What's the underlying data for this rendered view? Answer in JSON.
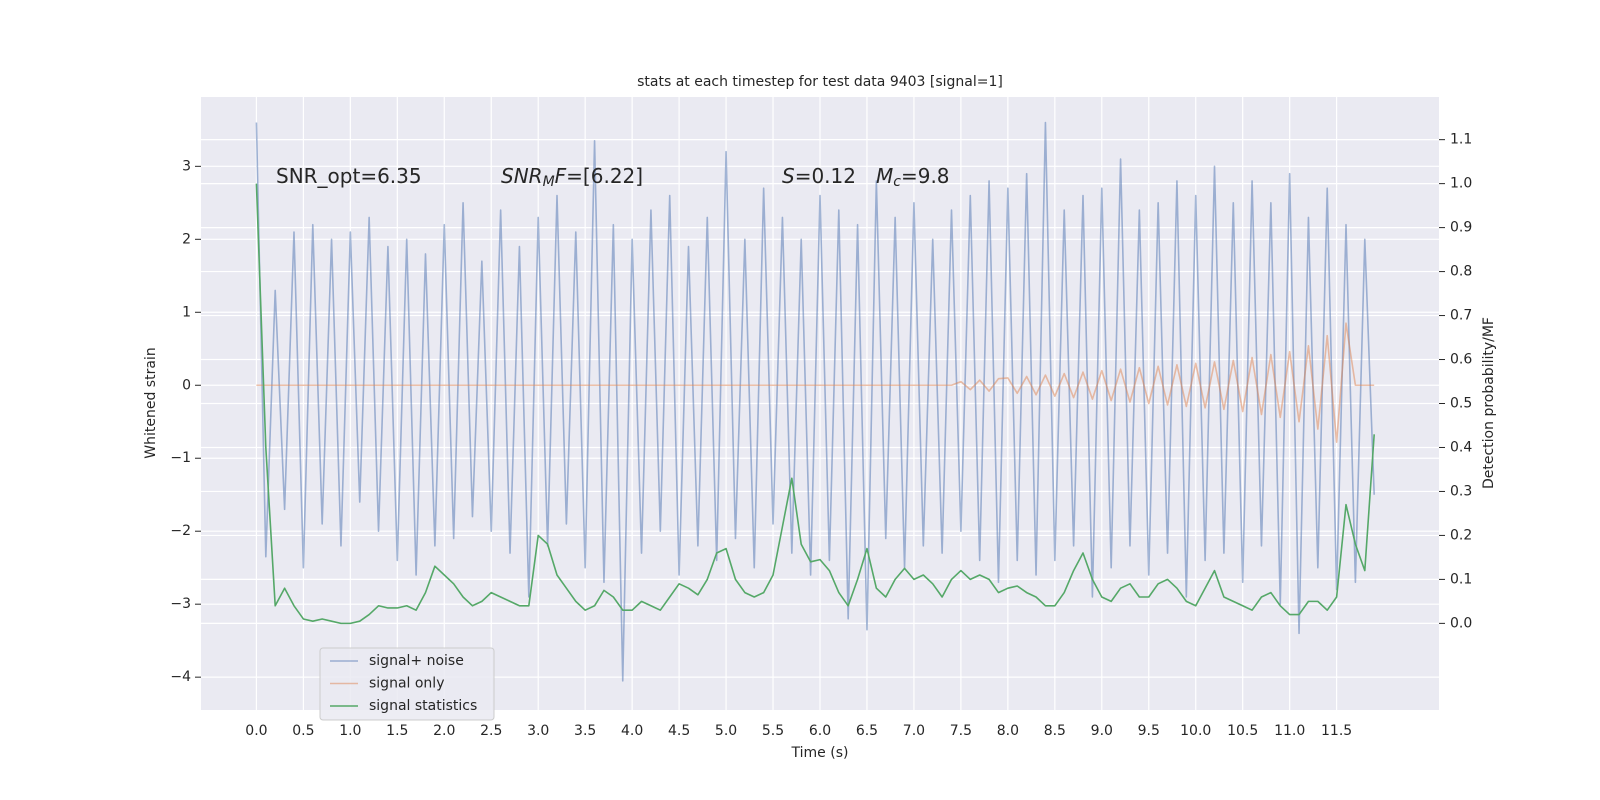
{
  "chart_data": {
    "type": "line",
    "title": "stats at each timestep for test data 9403 [signal=1]",
    "xlabel": "Time (s)",
    "ylabel": "Whitened strain",
    "y2label": "Detection probability/MF",
    "annotations": [
      [
        {
          "text": "SNR_opt=6.35"
        }
      ],
      [
        {
          "text": "SNR",
          "style": "italic"
        },
        {
          "text": "M",
          "style": "italic-sub"
        },
        {
          "text": "F",
          "style": "italic"
        },
        {
          "text": "=[6.22]"
        }
      ],
      [
        {
          "text": "S",
          "style": "italic"
        },
        {
          "text": "=0.12"
        }
      ],
      [
        {
          "text": "M",
          "style": "italic"
        },
        {
          "text": "c",
          "style": "italic-sub"
        },
        {
          "text": "=9.8"
        }
      ]
    ],
    "x": [
      0,
      0.1,
      0.2,
      0.3,
      0.4,
      0.5,
      0.6,
      0.7,
      0.8,
      0.9,
      1.0,
      1.1,
      1.2,
      1.3,
      1.4,
      1.5,
      1.6,
      1.7,
      1.8,
      1.9,
      2.0,
      2.1,
      2.2,
      2.3,
      2.4,
      2.5,
      2.6,
      2.7,
      2.8,
      2.9,
      3.0,
      3.1,
      3.2,
      3.3,
      3.4,
      3.5,
      3.6,
      3.7,
      3.8,
      3.9,
      4.0,
      4.1,
      4.2,
      4.3,
      4.4,
      4.5,
      4.6,
      4.7,
      4.8,
      4.9,
      5.0,
      5.1,
      5.2,
      5.3,
      5.4,
      5.5,
      5.6,
      5.7,
      5.8,
      5.9,
      6.0,
      6.1,
      6.2,
      6.3,
      6.4,
      6.5,
      6.6,
      6.7,
      6.8,
      6.9,
      7.0,
      7.1,
      7.2,
      7.3,
      7.4,
      7.5,
      7.6,
      7.7,
      7.8,
      7.9,
      8.0,
      8.1,
      8.2,
      8.3,
      8.4,
      8.5,
      8.6,
      8.7,
      8.8,
      8.9,
      9.0,
      9.1,
      9.2,
      9.3,
      9.4,
      9.5,
      9.6,
      9.7,
      9.8,
      9.9,
      10.0,
      10.1,
      10.2,
      10.3,
      10.4,
      10.5,
      10.6,
      10.7,
      10.8,
      10.9,
      11.0,
      11.1,
      11.2,
      11.3,
      11.4,
      11.5,
      11.6,
      11.7,
      11.8,
      11.9
    ],
    "series": [
      {
        "name": "signal+ noise",
        "color": "#4c72b0",
        "opacity": 0.5,
        "values": [
          3.6,
          -2.35,
          1.3,
          -1.7,
          2.1,
          -2.5,
          2.2,
          -1.9,
          2.0,
          -2.2,
          2.1,
          -1.6,
          2.3,
          -2.0,
          1.9,
          -2.4,
          2.0,
          -2.6,
          1.8,
          -2.2,
          2.2,
          -2.1,
          2.5,
          -1.8,
          1.7,
          -2.0,
          2.4,
          -2.3,
          1.9,
          -2.9,
          2.3,
          -2.2,
          2.6,
          -1.9,
          2.1,
          -2.5,
          3.35,
          -2.7,
          2.2,
          -4.05,
          2.0,
          -2.3,
          2.4,
          -2.0,
          2.6,
          -2.6,
          1.9,
          -2.2,
          2.3,
          -2.4,
          3.2,
          -2.1,
          2.0,
          -2.5,
          2.7,
          -1.9,
          2.3,
          -2.3,
          2.0,
          -2.6,
          2.6,
          -2.4,
          2.4,
          -3.2,
          2.2,
          -3.35,
          2.8,
          -2.1,
          2.3,
          -2.5,
          2.5,
          -2.2,
          2.0,
          -2.3,
          2.4,
          -2.0,
          2.6,
          -2.4,
          2.8,
          -2.7,
          2.7,
          -2.4,
          2.9,
          -2.6,
          3.6,
          -2.4,
          2.4,
          -2.2,
          2.6,
          -2.9,
          2.7,
          -2.5,
          3.1,
          -2.2,
          2.4,
          -2.6,
          2.5,
          -2.3,
          2.8,
          -2.9,
          2.6,
          -2.4,
          3.0,
          -2.3,
          2.5,
          -2.7,
          2.8,
          -2.2,
          2.5,
          -3.0,
          2.9,
          -3.4,
          2.3,
          -2.5,
          2.7,
          -2.8,
          2.2,
          -2.7,
          2.0,
          -1.5
        ]
      },
      {
        "name": "signal only",
        "color": "#dd8452",
        "opacity": 0.5,
        "values": [
          0,
          0,
          0,
          0,
          0,
          0,
          0,
          0,
          0,
          0,
          0,
          0,
          0,
          0,
          0,
          0,
          0,
          0,
          0,
          0,
          0,
          0,
          0,
          0,
          0,
          0,
          0,
          0,
          0,
          0,
          0,
          0,
          0,
          0,
          0,
          0,
          0,
          0,
          0,
          0,
          0,
          0,
          0,
          0,
          0,
          0,
          0,
          0,
          0,
          0,
          0,
          0,
          0,
          0,
          0,
          0,
          0,
          0,
          0,
          0,
          0,
          0,
          0,
          0,
          0,
          0,
          0,
          0,
          0,
          0,
          0,
          0,
          0,
          0,
          0,
          0.05,
          -0.06,
          0.07,
          -0.08,
          0.09,
          0.1,
          -0.11,
          0.12,
          -0.13,
          0.14,
          -0.15,
          0.16,
          -0.17,
          0.18,
          -0.19,
          0.2,
          -0.21,
          0.22,
          -0.23,
          0.24,
          -0.25,
          0.26,
          -0.27,
          0.28,
          -0.29,
          0.3,
          -0.31,
          0.32,
          -0.33,
          0.34,
          -0.36,
          0.38,
          -0.4,
          0.42,
          -0.44,
          0.46,
          -0.5,
          0.54,
          -0.6,
          0.68,
          -0.78,
          0.85,
          0.0,
          0.0,
          0.0
        ]
      },
      {
        "name": "signal statistics",
        "color": "#55a868",
        "opacity": 1,
        "axis": "y2",
        "values": [
          1.0,
          0.4,
          0.04,
          0.08,
          0.04,
          0.01,
          0.005,
          0.01,
          0.005,
          0.0,
          0.0,
          0.005,
          0.02,
          0.04,
          0.035,
          0.035,
          0.04,
          0.03,
          0.07,
          0.13,
          0.11,
          0.09,
          0.06,
          0.04,
          0.05,
          0.07,
          0.06,
          0.05,
          0.04,
          0.04,
          0.2,
          0.18,
          0.11,
          0.08,
          0.05,
          0.03,
          0.04,
          0.075,
          0.06,
          0.03,
          0.03,
          0.05,
          0.04,
          0.03,
          0.06,
          0.09,
          0.08,
          0.065,
          0.1,
          0.16,
          0.17,
          0.1,
          0.07,
          0.06,
          0.07,
          0.11,
          0.22,
          0.33,
          0.18,
          0.14,
          0.145,
          0.12,
          0.07,
          0.04,
          0.1,
          0.17,
          0.08,
          0.06,
          0.1,
          0.125,
          0.1,
          0.11,
          0.09,
          0.06,
          0.1,
          0.12,
          0.1,
          0.11,
          0.1,
          0.07,
          0.08,
          0.085,
          0.07,
          0.06,
          0.04,
          0.04,
          0.07,
          0.12,
          0.16,
          0.1,
          0.06,
          0.05,
          0.08,
          0.09,
          0.06,
          0.06,
          0.09,
          0.1,
          0.08,
          0.05,
          0.04,
          0.08,
          0.12,
          0.06,
          0.05,
          0.04,
          0.03,
          0.06,
          0.07,
          0.04,
          0.02,
          0.02,
          0.05,
          0.05,
          0.03,
          0.06,
          0.27,
          0.18,
          0.12,
          0.43
        ]
      }
    ],
    "xlim": [
      -0.59,
      12.59
    ],
    "ylim": [
      -4.45,
      3.95
    ],
    "y2lim": [
      -0.197,
      1.197
    ],
    "xticks": [
      {
        "value": 0,
        "label": "0.0"
      },
      {
        "value": 0.5,
        "label": "0.5"
      },
      {
        "value": 1,
        "label": "1.0"
      },
      {
        "value": 1.5,
        "label": "1.5"
      },
      {
        "value": 2,
        "label": "2.0"
      },
      {
        "value": 2.5,
        "label": "2.5"
      },
      {
        "value": 3,
        "label": "3.0"
      },
      {
        "value": 3.5,
        "label": "3.5"
      },
      {
        "value": 4,
        "label": "4.0"
      },
      {
        "value": 4.5,
        "label": "4.5"
      },
      {
        "value": 5,
        "label": "5.0"
      },
      {
        "value": 5.5,
        "label": "5.5"
      },
      {
        "value": 6,
        "label": "6.0"
      },
      {
        "value": 6.5,
        "label": "6.5"
      },
      {
        "value": 7,
        "label": "7.0"
      },
      {
        "value": 7.5,
        "label": "7.5"
      },
      {
        "value": 8,
        "label": "8.0"
      },
      {
        "value": 8.5,
        "label": "8.5"
      },
      {
        "value": 9,
        "label": "9.0"
      },
      {
        "value": 9.5,
        "label": "9.5"
      },
      {
        "value": 10,
        "label": "10.0"
      },
      {
        "value": 10.5,
        "label": "10.5"
      },
      {
        "value": 11,
        "label": "11.0"
      },
      {
        "value": 11.5,
        "label": "11.5"
      }
    ],
    "yticks": [
      {
        "value": -4,
        "label": "−4"
      },
      {
        "value": -3,
        "label": "−3"
      },
      {
        "value": -2,
        "label": "−2"
      },
      {
        "value": -1,
        "label": "−1"
      },
      0,
      1,
      2,
      3
    ],
    "y2ticks": [
      {
        "value": 0,
        "label": "0.0"
      },
      {
        "value": 0.1,
        "label": "0.1"
      },
      {
        "value": 0.2,
        "label": "0.2"
      },
      {
        "value": 0.3,
        "label": "0.3"
      },
      {
        "value": 0.4,
        "label": "0.4"
      },
      {
        "value": 0.5,
        "label": "0.5"
      },
      {
        "value": 0.6,
        "label": "0.6"
      },
      {
        "value": 0.7,
        "label": "0.7"
      },
      {
        "value": 0.8,
        "label": "0.8"
      },
      {
        "value": 0.9,
        "label": "0.9"
      },
      {
        "value": 1.0,
        "label": "1.0"
      },
      {
        "value": 1.1,
        "label": "1.1"
      }
    ],
    "grid": true,
    "background": "#eaeaf2",
    "legend": "lower left"
  }
}
